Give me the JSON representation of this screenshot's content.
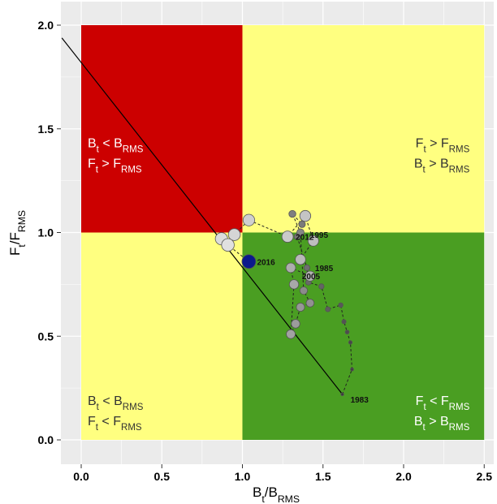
{
  "chart_data": {
    "type": "scatter",
    "xlabel": "Bt/BRMS",
    "ylabel": "Ft/FRMS",
    "xlim": [
      -0.12,
      2.55
    ],
    "ylim": [
      -0.1,
      2.1
    ],
    "xticks": [
      "0.0",
      "0.5",
      "1.0",
      "1.5",
      "2.0",
      "2.5"
    ],
    "yticks": [
      "0.0",
      "0.5",
      "1.0",
      "1.5",
      "2.0"
    ],
    "grid": true,
    "colors": {
      "red": "#cc0000",
      "yellow": "#ffff80",
      "green": "#4a9e22",
      "current_point": "#0b1a8c",
      "background": "#ebebeb"
    },
    "quadrants": [
      {
        "id": "top-left",
        "x": [
          0,
          1
        ],
        "y": [
          1,
          2
        ],
        "color": "red",
        "label1": "Bt < BRMS",
        "label2": "Ft > FRMS"
      },
      {
        "id": "top-right",
        "x": [
          1,
          2.5
        ],
        "y": [
          1,
          2
        ],
        "color": "yellow",
        "label1": "Ft > FRMS",
        "label2": "Bt > BRMS"
      },
      {
        "id": "bottom-left",
        "x": [
          0,
          1
        ],
        "y": [
          0,
          1
        ],
        "color": "yellow",
        "label1": "Bt < BRMS",
        "label2": "Ft < FRMS"
      },
      {
        "id": "bottom-right",
        "x": [
          1,
          2.5
        ],
        "y": [
          0,
          1
        ],
        "color": "green",
        "label1": "Ft < FRMS",
        "label2": "Bt > BRMS"
      }
    ],
    "reference_line": {
      "x1": 0.0,
      "y1": 1.82,
      "x2": 1.62,
      "y2": 0.22
    },
    "series": [
      {
        "points": [
          {
            "x": 1.62,
            "y": 0.22,
            "year": "1983"
          },
          {
            "x": 1.68,
            "y": 0.34
          },
          {
            "x": 1.67,
            "y": 0.47
          },
          {
            "x": 1.65,
            "y": 0.52
          },
          {
            "x": 1.63,
            "y": 0.57
          },
          {
            "x": 1.61,
            "y": 0.65
          },
          {
            "x": 1.53,
            "y": 0.63
          },
          {
            "x": 1.49,
            "y": 0.74
          },
          {
            "x": 1.41,
            "y": 0.76
          },
          {
            "x": 1.4,
            "y": 0.83,
            "year": "1985"
          },
          {
            "x": 1.34,
            "y": 0.98
          },
          {
            "x": 1.37,
            "y": 1.04
          },
          {
            "x": 1.31,
            "y": 1.09
          },
          {
            "x": 1.36,
            "y": 1.0
          },
          {
            "x": 1.38,
            "y": 0.72
          },
          {
            "x": 1.42,
            "y": 0.66
          },
          {
            "x": 1.36,
            "y": 0.64
          },
          {
            "x": 1.33,
            "y": 0.56
          },
          {
            "x": 1.3,
            "y": 0.51
          },
          {
            "x": 1.32,
            "y": 0.75
          },
          {
            "x": 1.3,
            "y": 0.83
          },
          {
            "x": 1.42,
            "y": 0.79
          },
          {
            "x": 1.36,
            "y": 0.87
          },
          {
            "x": 1.44,
            "y": 0.96
          },
          {
            "x": 1.39,
            "y": 1.08
          },
          {
            "x": 1.28,
            "y": 0.98,
            "year": "2012"
          },
          {
            "x": 1.04,
            "y": 1.06
          },
          {
            "x": 0.95,
            "y": 0.99
          },
          {
            "x": 0.87,
            "y": 0.97
          },
          {
            "x": 0.91,
            "y": 0.94
          },
          {
            "x": 1.04,
            "y": 0.86,
            "year": "2016"
          }
        ]
      }
    ],
    "extra_labels": [
      {
        "x": 1.47,
        "y": 0.99,
        "text": "1995"
      },
      {
        "x": 1.42,
        "y": 0.79,
        "text": "2005"
      }
    ]
  }
}
